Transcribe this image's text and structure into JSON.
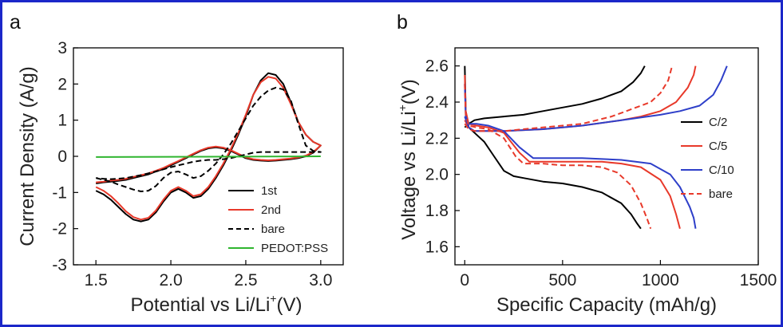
{
  "figure": {
    "border_color": "#1b27c9",
    "panels": [
      "a",
      "b"
    ]
  },
  "chart_data": [
    {
      "panel": "a",
      "type": "line",
      "title": "",
      "xlabel": "Potential vs Li/Li",
      "xlabel_sup": "+",
      "xlabel_unit": "(V)",
      "ylabel": "Current Density (A/g)",
      "xlim": [
        1.35,
        3.15
      ],
      "ylim": [
        -3,
        3
      ],
      "xticks": [
        1.5,
        2.0,
        2.5,
        3.0
      ],
      "xtick_labels": [
        "1.5",
        "2.0",
        "2.5",
        "3.0"
      ],
      "yticks": [
        -3,
        -2,
        -1,
        0,
        1,
        2,
        3
      ],
      "ytick_labels": [
        "-3",
        "-2",
        "-1",
        "0",
        "1",
        "2",
        "3"
      ],
      "grid": false,
      "legend_position": "bottom-right",
      "series": [
        {
          "name": "1st",
          "color": "#000000",
          "style": "solid",
          "x": [
            1.5,
            1.55,
            1.6,
            1.65,
            1.7,
            1.75,
            1.8,
            1.85,
            1.9,
            1.95,
            2.0,
            2.05,
            2.1,
            2.15,
            2.2,
            2.25,
            2.3,
            2.35,
            2.4,
            2.45,
            2.5,
            2.55,
            2.6,
            2.65,
            2.7,
            2.75,
            2.8,
            2.85,
            2.9,
            2.95,
            3.0,
            2.95,
            2.9,
            2.85,
            2.8,
            2.75,
            2.7,
            2.65,
            2.6,
            2.55,
            2.5,
            2.45,
            2.4,
            2.35,
            2.3,
            2.25,
            2.2,
            2.15,
            2.1,
            2.05,
            2.0,
            1.95,
            1.9,
            1.85,
            1.8,
            1.75,
            1.7,
            1.65,
            1.6,
            1.55,
            1.5
          ],
          "y": [
            -0.95,
            -1.05,
            -1.2,
            -1.4,
            -1.6,
            -1.75,
            -1.8,
            -1.75,
            -1.55,
            -1.25,
            -1.0,
            -0.9,
            -1.0,
            -1.15,
            -1.1,
            -0.9,
            -0.6,
            -0.25,
            0.15,
            0.6,
            1.1,
            1.7,
            2.1,
            2.3,
            2.25,
            2.0,
            1.5,
            0.95,
            0.6,
            0.4,
            0.3,
            0.1,
            0.0,
            -0.05,
            -0.08,
            -0.1,
            -0.12,
            -0.13,
            -0.12,
            -0.1,
            -0.05,
            0.05,
            0.15,
            0.22,
            0.25,
            0.22,
            0.15,
            0.05,
            -0.05,
            -0.15,
            -0.25,
            -0.35,
            -0.42,
            -0.5,
            -0.55,
            -0.6,
            -0.65,
            -0.68,
            -0.7,
            -0.72,
            -0.75
          ]
        },
        {
          "name": "2nd",
          "color": "#e8392a",
          "style": "solid",
          "x": [
            1.5,
            1.55,
            1.6,
            1.65,
            1.7,
            1.75,
            1.8,
            1.85,
            1.9,
            1.95,
            2.0,
            2.05,
            2.1,
            2.15,
            2.2,
            2.25,
            2.3,
            2.35,
            2.4,
            2.45,
            2.5,
            2.55,
            2.6,
            2.65,
            2.7,
            2.75,
            2.8,
            2.85,
            2.9,
            2.95,
            3.0,
            2.95,
            2.9,
            2.85,
            2.8,
            2.75,
            2.7,
            2.65,
            2.6,
            2.55,
            2.5,
            2.45,
            2.4,
            2.35,
            2.3,
            2.25,
            2.2,
            2.15,
            2.1,
            2.05,
            2.0,
            1.95,
            1.9,
            1.85,
            1.8,
            1.75,
            1.7,
            1.65,
            1.6,
            1.55,
            1.5
          ],
          "y": [
            -0.85,
            -0.95,
            -1.1,
            -1.3,
            -1.52,
            -1.68,
            -1.75,
            -1.7,
            -1.5,
            -1.2,
            -0.95,
            -0.85,
            -0.95,
            -1.1,
            -1.05,
            -0.85,
            -0.55,
            -0.2,
            0.2,
            0.65,
            1.15,
            1.7,
            2.05,
            2.2,
            2.15,
            1.9,
            1.45,
            0.95,
            0.6,
            0.4,
            0.3,
            0.12,
            0.02,
            -0.03,
            -0.06,
            -0.08,
            -0.1,
            -0.11,
            -0.1,
            -0.08,
            -0.03,
            0.07,
            0.17,
            0.24,
            0.27,
            0.24,
            0.17,
            0.07,
            -0.03,
            -0.13,
            -0.22,
            -0.32,
            -0.4,
            -0.47,
            -0.52,
            -0.57,
            -0.62,
            -0.65,
            -0.67,
            -0.7,
            -0.72
          ]
        },
        {
          "name": "bare",
          "color": "#000000",
          "style": "dashed",
          "x": [
            1.5,
            1.55,
            1.6,
            1.65,
            1.7,
            1.75,
            1.8,
            1.85,
            1.9,
            1.95,
            2.0,
            2.05,
            2.1,
            2.15,
            2.2,
            2.25,
            2.3,
            2.35,
            2.4,
            2.45,
            2.5,
            2.55,
            2.6,
            2.65,
            2.7,
            2.75,
            2.8,
            2.85,
            2.9,
            2.95,
            3.0,
            2.95,
            2.9,
            2.85,
            2.8,
            2.75,
            2.7,
            2.65,
            2.6,
            2.55,
            2.5,
            2.45,
            2.4,
            2.35,
            2.3,
            2.25,
            2.2,
            2.15,
            2.1,
            2.05,
            2.0,
            1.95,
            1.9,
            1.85,
            1.8,
            1.75,
            1.7,
            1.65,
            1.6,
            1.55,
            1.5
          ],
          "y": [
            -0.6,
            -0.65,
            -0.7,
            -0.78,
            -0.85,
            -0.92,
            -0.97,
            -0.95,
            -0.82,
            -0.6,
            -0.45,
            -0.42,
            -0.5,
            -0.6,
            -0.55,
            -0.4,
            -0.2,
            0.05,
            0.35,
            0.7,
            1.05,
            1.4,
            1.65,
            1.82,
            1.9,
            1.85,
            1.55,
            0.9,
            0.3,
            0.15,
            0.12,
            0.12,
            0.12,
            0.12,
            0.12,
            0.12,
            0.12,
            0.12,
            0.12,
            0.1,
            0.05,
            0.0,
            -0.05,
            -0.08,
            -0.1,
            -0.1,
            -0.12,
            -0.15,
            -0.2,
            -0.25,
            -0.3,
            -0.36,
            -0.42,
            -0.47,
            -0.52,
            -0.56,
            -0.6,
            -0.62,
            -0.63,
            -0.62,
            -0.6
          ]
        },
        {
          "name": "PEDOT:PSS",
          "color": "#2fb52f",
          "style": "solid",
          "x": [
            1.5,
            3.0
          ],
          "y": [
            -0.02,
            0.0
          ]
        }
      ]
    },
    {
      "panel": "b",
      "type": "line",
      "title": "",
      "xlabel": "Specific Capacity (mAh/g)",
      "ylabel": "Voltage vs Li/Li",
      "ylabel_sup": "+",
      "ylabel_unit": "(V)",
      "xlim": [
        -50,
        1500
      ],
      "ylim": [
        1.5,
        2.7
      ],
      "xticks": [
        0,
        500,
        1000,
        1500
      ],
      "xtick_labels": [
        "0",
        "500",
        "1000",
        "1500"
      ],
      "yticks": [
        1.6,
        1.8,
        2.0,
        2.2,
        2.4,
        2.6
      ],
      "ytick_labels": [
        "1.6",
        "1.8",
        "2.0",
        "2.2",
        "2.4",
        "2.6"
      ],
      "grid": false,
      "legend_position": "right",
      "series": [
        {
          "name": "C/2",
          "color": "#000000",
          "style": "solid",
          "charge_x": [
            0,
            20,
            50,
            100,
            200,
            300,
            400,
            500,
            600,
            700,
            800,
            860,
            900,
            920
          ],
          "charge_y": [
            2.26,
            2.28,
            2.3,
            2.31,
            2.32,
            2.33,
            2.35,
            2.37,
            2.39,
            2.42,
            2.46,
            2.51,
            2.56,
            2.6
          ],
          "discharge_x": [
            0,
            5,
            20,
            60,
            100,
            150,
            200,
            250,
            300,
            400,
            500,
            600,
            700,
            800,
            850,
            880,
            900
          ],
          "discharge_y": [
            2.6,
            2.35,
            2.26,
            2.22,
            2.18,
            2.1,
            2.02,
            1.99,
            1.98,
            1.96,
            1.95,
            1.93,
            1.9,
            1.84,
            1.78,
            1.73,
            1.7
          ]
        },
        {
          "name": "C/5",
          "color": "#e8392a",
          "style": "solid",
          "charge_x": [
            0,
            20,
            50,
            100,
            200,
            400,
            600,
            800,
            900,
            1000,
            1080,
            1140,
            1170,
            1180
          ],
          "charge_y": [
            2.3,
            2.26,
            2.24,
            2.24,
            2.24,
            2.25,
            2.27,
            2.3,
            2.32,
            2.35,
            2.4,
            2.48,
            2.55,
            2.6
          ],
          "discharge_x": [
            0,
            5,
            20,
            60,
            120,
            200,
            280,
            330,
            400,
            500,
            600,
            700,
            800,
            900,
            1000,
            1050,
            1080,
            1100
          ],
          "discharge_y": [
            2.55,
            2.35,
            2.28,
            2.27,
            2.26,
            2.23,
            2.12,
            2.07,
            2.07,
            2.07,
            2.07,
            2.07,
            2.06,
            2.04,
            1.97,
            1.88,
            1.78,
            1.7
          ]
        },
        {
          "name": "C/10",
          "color": "#2e3fc9",
          "style": "solid",
          "charge_x": [
            0,
            20,
            50,
            100,
            200,
            400,
            600,
            800,
            1000,
            1100,
            1200,
            1270,
            1310,
            1340
          ],
          "charge_y": [
            2.32,
            2.26,
            2.24,
            2.24,
            2.24,
            2.25,
            2.27,
            2.3,
            2.33,
            2.35,
            2.38,
            2.44,
            2.52,
            2.6
          ],
          "discharge_x": [
            0,
            5,
            20,
            60,
            120,
            200,
            280,
            350,
            450,
            600,
            800,
            950,
            1050,
            1100,
            1150,
            1170,
            1180
          ],
          "discharge_y": [
            2.5,
            2.32,
            2.28,
            2.28,
            2.27,
            2.24,
            2.15,
            2.09,
            2.09,
            2.09,
            2.08,
            2.06,
            2.0,
            1.93,
            1.82,
            1.76,
            1.7
          ]
        },
        {
          "name": "bare",
          "color": "#e8392a",
          "style": "dashed",
          "charge_x": [
            0,
            20,
            50,
            100,
            200,
            400,
            600,
            750,
            850,
            950,
            1000,
            1040,
            1060
          ],
          "charge_y": [
            2.28,
            2.25,
            2.24,
            2.24,
            2.24,
            2.26,
            2.28,
            2.32,
            2.36,
            2.4,
            2.45,
            2.52,
            2.6
          ],
          "discharge_x": [
            0,
            5,
            20,
            60,
            120,
            200,
            260,
            300,
            400,
            500,
            600,
            700,
            780,
            850,
            900,
            930,
            950
          ],
          "discharge_y": [
            2.5,
            2.33,
            2.27,
            2.26,
            2.25,
            2.2,
            2.1,
            2.06,
            2.06,
            2.05,
            2.05,
            2.04,
            2.01,
            1.94,
            1.84,
            1.76,
            1.7
          ]
        }
      ]
    }
  ]
}
